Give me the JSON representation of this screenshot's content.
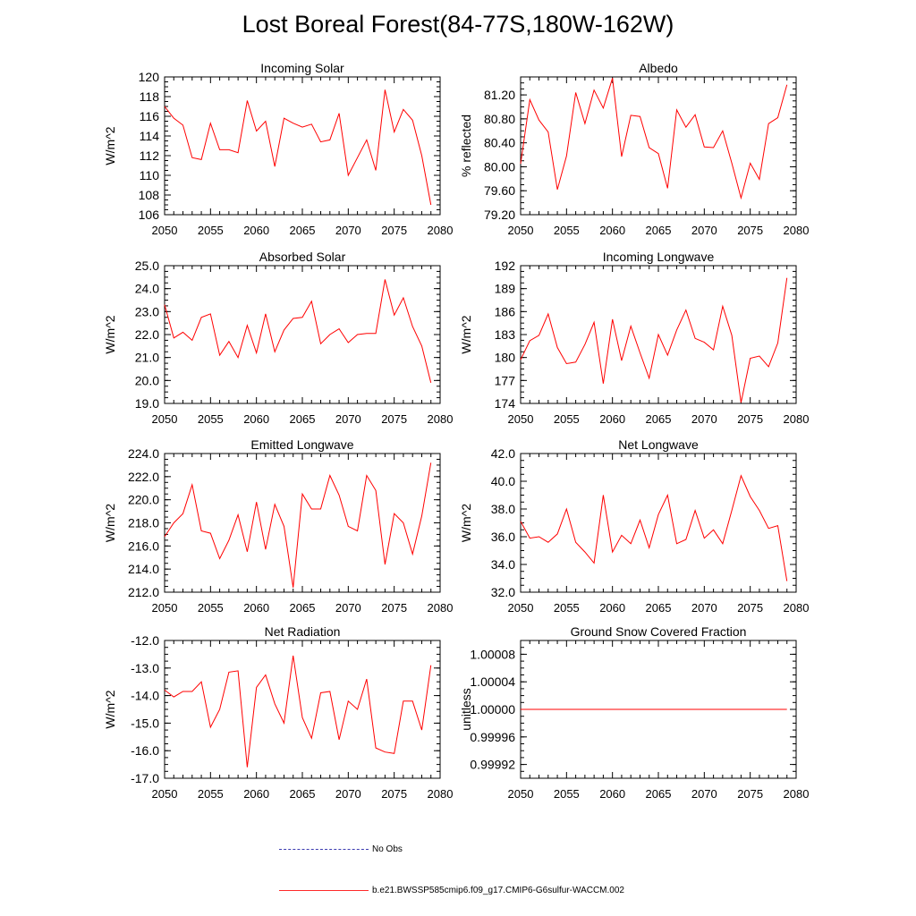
{
  "title": "Lost Boreal Forest(84-77S,180W-162W)",
  "colors": {
    "series": "#ff0000",
    "obs": "#3b3bb0",
    "axis": "#000000"
  },
  "legend": {
    "obs_label": "No Obs",
    "model_label": "b.e21.BWSSP585cmip6.f09_g17.CMIP6-G6sulfur-WACCM.002"
  },
  "chart_data": [
    {
      "type": "line",
      "title": "Incoming Solar",
      "ylabel": "W/m^2",
      "xlim": [
        2050,
        2080
      ],
      "ylim": [
        106,
        120
      ],
      "xticks": [
        "2050",
        "2055",
        "2060",
        "2065",
        "2070",
        "2075",
        "2080"
      ],
      "yticks": [
        "106",
        "108",
        "110",
        "112",
        "114",
        "116",
        "118",
        "120"
      ],
      "x_start": 2050,
      "values": [
        117.0,
        115.8,
        115.1,
        111.8,
        111.6,
        115.3,
        112.6,
        112.6,
        112.3,
        117.6,
        114.5,
        115.5,
        110.9,
        115.8,
        115.3,
        114.9,
        115.2,
        113.4,
        113.6,
        116.3,
        110.0,
        111.8,
        113.6,
        110.5,
        118.7,
        114.4,
        116.7,
        115.6,
        112.0,
        107.0
      ]
    },
    {
      "type": "line",
      "title": "Albedo",
      "ylabel": "% reflected",
      "xlim": [
        2050,
        2080
      ],
      "ylim": [
        79.2,
        81.5
      ],
      "xticks": [
        "2050",
        "2055",
        "2060",
        "2065",
        "2070",
        "2075",
        "2080"
      ],
      "yticks": [
        "79.20",
        "79.60",
        "80.00",
        "80.40",
        "80.80",
        "81.20"
      ],
      "x_start": 2050,
      "values": [
        80.05,
        81.12,
        80.78,
        80.58,
        79.62,
        80.18,
        81.24,
        80.72,
        81.28,
        80.98,
        81.48,
        80.17,
        80.86,
        80.84,
        80.32,
        80.22,
        79.64,
        80.95,
        80.66,
        80.87,
        80.33,
        80.32,
        80.6,
        80.06,
        79.48,
        80.06,
        79.79,
        80.72,
        80.82,
        81.37
      ]
    },
    {
      "type": "line",
      "title": "Absorbed Solar",
      "ylabel": "W/m^2",
      "xlim": [
        2050,
        2080
      ],
      "ylim": [
        19.0,
        25.0
      ],
      "xticks": [
        "2050",
        "2055",
        "2060",
        "2065",
        "2070",
        "2075",
        "2080"
      ],
      "yticks": [
        "19.0",
        "20.0",
        "21.0",
        "22.0",
        "23.0",
        "24.0",
        "25.0"
      ],
      "x_start": 2050,
      "values": [
        23.3,
        21.85,
        22.1,
        21.75,
        22.75,
        22.9,
        21.1,
        21.7,
        21.0,
        22.4,
        21.2,
        22.9,
        21.25,
        22.2,
        22.7,
        22.75,
        23.45,
        21.6,
        22.0,
        22.25,
        21.65,
        22.0,
        22.05,
        22.05,
        24.4,
        22.85,
        23.6,
        22.35,
        21.5,
        19.9
      ]
    },
    {
      "type": "line",
      "title": "Incoming Longwave",
      "ylabel": "W/m^2",
      "xlim": [
        2050,
        2080
      ],
      "ylim": [
        174,
        192
      ],
      "xticks": [
        "2050",
        "2055",
        "2060",
        "2065",
        "2070",
        "2075",
        "2080"
      ],
      "yticks": [
        "174",
        "177",
        "180",
        "183",
        "186",
        "189",
        "192"
      ],
      "x_start": 2050,
      "values": [
        179.7,
        182.2,
        182.9,
        185.7,
        181.3,
        179.2,
        179.4,
        181.7,
        184.6,
        176.6,
        185.0,
        179.6,
        184.1,
        180.6,
        177.3,
        183.0,
        180.3,
        183.6,
        186.2,
        182.5,
        182.0,
        181.0,
        186.7,
        182.9,
        174.1,
        179.9,
        180.2,
        178.8,
        181.9,
        190.4
      ]
    },
    {
      "type": "line",
      "title": "Emitted Longwave",
      "ylabel": "W/m^2",
      "xlim": [
        2050,
        2080
      ],
      "ylim": [
        212.0,
        224.0
      ],
      "xticks": [
        "2050",
        "2055",
        "2060",
        "2065",
        "2070",
        "2075",
        "2080"
      ],
      "yticks": [
        "212.0",
        "214.0",
        "216.0",
        "218.0",
        "220.0",
        "222.0",
        "224.0"
      ],
      "x_start": 2050,
      "values": [
        216.8,
        218.0,
        218.8,
        221.3,
        217.3,
        217.1,
        214.9,
        216.5,
        218.7,
        215.5,
        219.8,
        215.7,
        219.6,
        217.7,
        212.4,
        220.5,
        219.2,
        219.2,
        222.1,
        220.4,
        217.7,
        217.3,
        222.1,
        220.8,
        214.4,
        218.8,
        218.0,
        215.3,
        218.6,
        223.2
      ]
    },
    {
      "type": "line",
      "title": "Net Longwave",
      "ylabel": "W/m^2",
      "xlim": [
        2050,
        2080
      ],
      "ylim": [
        32.0,
        42.0
      ],
      "xticks": [
        "2050",
        "2055",
        "2060",
        "2065",
        "2070",
        "2075",
        "2080"
      ],
      "yticks": [
        "32.0",
        "34.0",
        "36.0",
        "38.0",
        "40.0",
        "42.0"
      ],
      "x_start": 2050,
      "values": [
        37.1,
        35.9,
        36.0,
        35.6,
        36.2,
        38.0,
        35.6,
        34.9,
        34.1,
        39.0,
        34.9,
        36.1,
        35.5,
        37.2,
        35.2,
        37.6,
        39.0,
        35.5,
        35.8,
        37.9,
        35.9,
        36.5,
        35.5,
        37.9,
        40.4,
        38.9,
        37.9,
        36.6,
        36.8,
        32.8
      ]
    },
    {
      "type": "line",
      "title": "Net Radiation",
      "ylabel": "W/m^2",
      "xlim": [
        2050,
        2080
      ],
      "ylim": [
        -17.0,
        -12.0
      ],
      "xticks": [
        "2050",
        "2055",
        "2060",
        "2065",
        "2070",
        "2075",
        "2080"
      ],
      "yticks": [
        "-17.0",
        "-16.0",
        "-15.0",
        "-14.0",
        "-13.0",
        "-12.0"
      ],
      "x_start": 2050,
      "values": [
        -13.8,
        -14.05,
        -13.85,
        -13.85,
        -13.5,
        -15.15,
        -14.5,
        -13.15,
        -13.1,
        -16.6,
        -13.7,
        -13.25,
        -14.3,
        -15.0,
        -12.55,
        -14.8,
        -15.55,
        -13.9,
        -13.85,
        -15.6,
        -14.2,
        -14.5,
        -13.4,
        -15.9,
        -16.05,
        -16.1,
        -14.2,
        -14.2,
        -15.25,
        -12.9
      ]
    },
    {
      "type": "line",
      "title": "Ground Snow Covered Fraction",
      "ylabel": "unitless",
      "xlim": [
        2050,
        2080
      ],
      "ylim": [
        0.9999,
        1.0001
      ],
      "xticks": [
        "2050",
        "2055",
        "2060",
        "2065",
        "2070",
        "2075",
        "2080"
      ],
      "yticks": [
        "0.99992",
        "0.99996",
        "1.00000",
        "1.00004",
        "1.00008"
      ],
      "x_start": 2050,
      "values": [
        1.0,
        1.0,
        1.0,
        1.0,
        1.0,
        1.0,
        1.0,
        1.0,
        1.0,
        1.0,
        1.0,
        1.0,
        1.0,
        1.0,
        1.0,
        1.0,
        1.0,
        1.0,
        1.0,
        1.0,
        1.0,
        1.0,
        1.0,
        1.0,
        1.0,
        1.0,
        1.0,
        1.0,
        1.0,
        1.0
      ]
    }
  ]
}
